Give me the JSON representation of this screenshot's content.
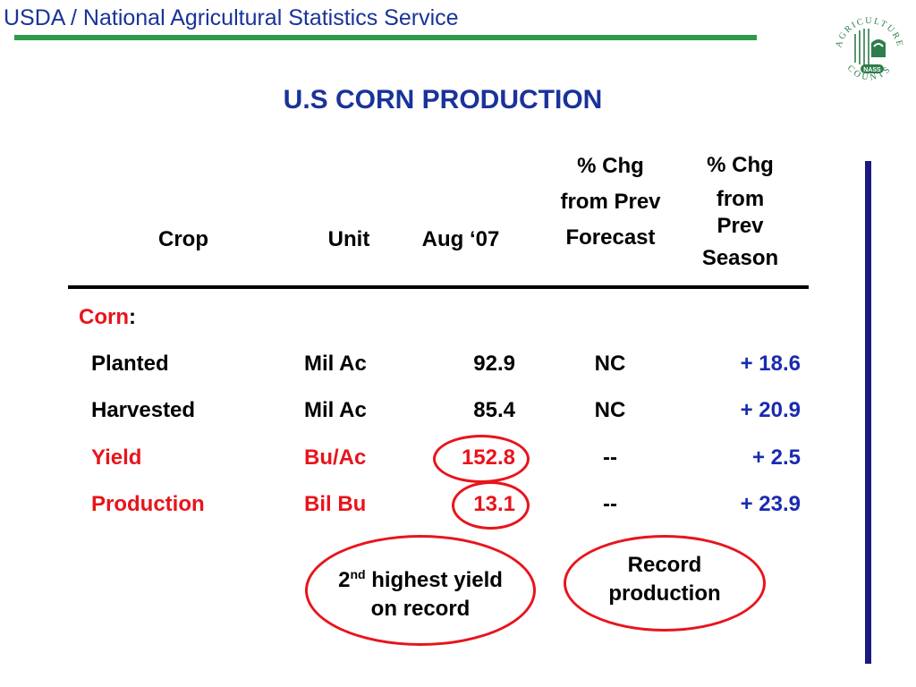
{
  "header": {
    "agency": "USDA / National Agricultural Statistics Service",
    "logo_top_text": "AGRICULTURE",
    "logo_badge": "NASS",
    "logo_bottom_text": "COUNTS"
  },
  "title": "U.S CORN PRODUCTION",
  "columns": {
    "crop": "Crop",
    "unit": "Unit",
    "aug07": "Aug ‘07",
    "chg_forecast_l1": "% Chg",
    "chg_forecast_l2": "from Prev",
    "chg_forecast_l3": "Forecast",
    "chg_season_l1": "% Chg",
    "chg_season_l2": "from",
    "chg_season_l3": "Prev",
    "chg_season_l4": "Season"
  },
  "section": {
    "label": "Corn",
    "colon": ":"
  },
  "rows": [
    {
      "crop": "Planted",
      "unit": "Mil Ac",
      "aug07": "92.9",
      "chg_forecast": "NC",
      "chg_season": "+ 18.6"
    },
    {
      "crop": "Harvested",
      "unit": "Mil Ac",
      "aug07": "85.4",
      "chg_forecast": "NC",
      "chg_season": "+ 20.9"
    },
    {
      "crop": "Yield",
      "unit": "Bu/Ac",
      "aug07": "152.8",
      "chg_forecast": "--",
      "chg_season": "+ 2.5"
    },
    {
      "crop": "Production",
      "unit": "Bil Bu",
      "aug07": "13.1",
      "chg_forecast": "--",
      "chg_season": "+ 23.9"
    }
  ],
  "notes": {
    "yield_prefix": "2",
    "yield_sup": "nd",
    "yield_rest": " highest yield",
    "yield_line2": "on record",
    "record_line1": "Record",
    "record_line2": "production"
  },
  "colors": {
    "header_blue": "#1a3399",
    "rule_green": "#2e9a4c",
    "highlight_red": "#e8141c",
    "value_blue": "#1a2bb0",
    "side_rule_navy": "#1a1a80"
  }
}
